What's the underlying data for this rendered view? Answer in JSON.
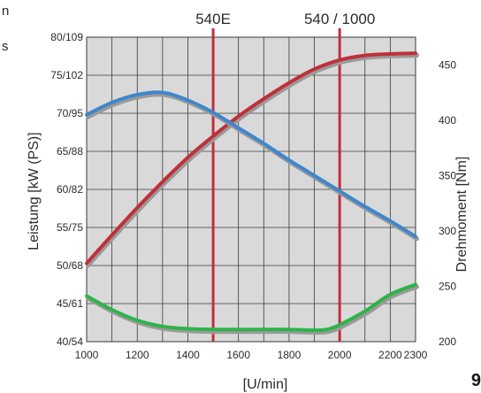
{
  "side_fragments": [
    "n",
    "s"
  ],
  "page_number": "9",
  "chart_data": {
    "type": "line",
    "xlabel": "[U/min]",
    "ylabel_left": "Leistung [kW (PS)]",
    "ylabel_right": "Drehmoment [Nm]",
    "x_range": [
      1000,
      2300
    ],
    "x_ticks": [
      1000,
      1200,
      1400,
      1600,
      1800,
      2000,
      2200,
      2300
    ],
    "ylim_left_kw": [
      40,
      80
    ],
    "y_ticks_left": [
      {
        "kw": 40,
        "label": "40/54"
      },
      {
        "kw": 45,
        "label": "45/61"
      },
      {
        "kw": 50,
        "label": "50/68"
      },
      {
        "kw": 55,
        "label": "55/75"
      },
      {
        "kw": 60,
        "label": "60/82"
      },
      {
        "kw": 65,
        "label": "65/88"
      },
      {
        "kw": 70,
        "label": "70/95"
      },
      {
        "kw": 75,
        "label": "75/102"
      },
      {
        "kw": 80,
        "label": "80/109"
      }
    ],
    "ylim_right_nm": [
      200,
      475
    ],
    "y_ticks_right": [
      200,
      250,
      300,
      350,
      400,
      450
    ],
    "markers": [
      {
        "x": 1500,
        "label": "540E"
      },
      {
        "x": 2000,
        "label": "540 / 1000"
      }
    ],
    "grid": true,
    "series": [
      {
        "key": "power",
        "axis": "left",
        "color": "#c0303a",
        "x": [
          1000,
          1100,
          1200,
          1300,
          1400,
          1500,
          1600,
          1700,
          1800,
          1900,
          2000,
          2100,
          2200,
          2300
        ],
        "y": [
          50.3,
          54.0,
          57.6,
          61.0,
          64.2,
          67.0,
          69.6,
          71.9,
          74.0,
          75.8,
          77.0,
          77.6,
          77.8,
          77.9
        ]
      },
      {
        "key": "torque",
        "axis": "right",
        "color": "#3f86cc",
        "x": [
          1000,
          1100,
          1200,
          1300,
          1400,
          1500,
          1600,
          1700,
          1800,
          1900,
          2000,
          2100,
          2200,
          2300
        ],
        "y": [
          405,
          416,
          423,
          425,
          418,
          407,
          393,
          379,
          364,
          350,
          336,
          322,
          309,
          295
        ]
      },
      {
        "key": "consumption",
        "axis": "left",
        "color": "#2db34a",
        "x": [
          1000,
          1100,
          1200,
          1300,
          1400,
          1500,
          1600,
          1700,
          1800,
          1900,
          1950,
          2000,
          2100,
          2200,
          2300
        ],
        "y": [
          46.0,
          44.2,
          42.8,
          42.0,
          41.7,
          41.6,
          41.6,
          41.6,
          41.6,
          41.5,
          41.6,
          42.2,
          44.0,
          46.2,
          47.5
        ]
      }
    ]
  }
}
